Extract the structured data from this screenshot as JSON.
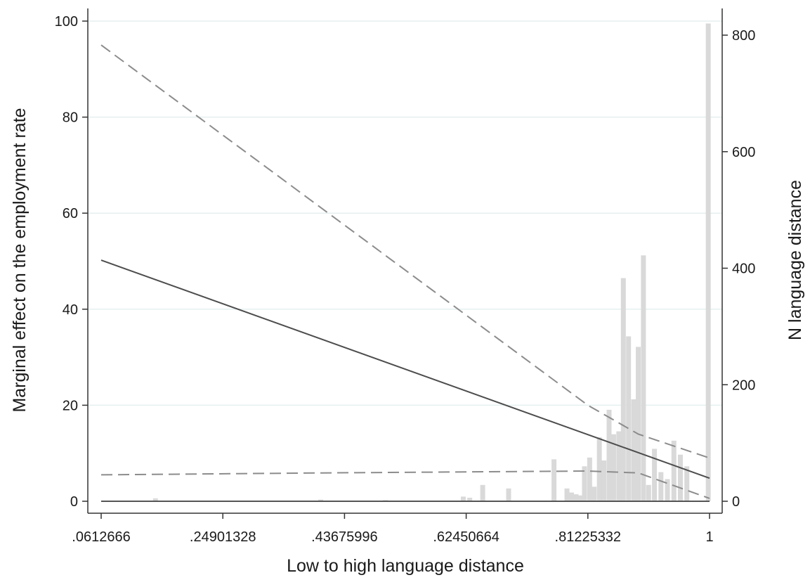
{
  "chart_data": {
    "type": "line",
    "xlabel": "Low to high language distance",
    "ylabel": "Marginal effect on the employment rate",
    "y2label": "N language distance",
    "xlim": [
      0.0612666,
      1
    ],
    "ylim": [
      0,
      100
    ],
    "y2lim": [
      0,
      820
    ],
    "x_ticks": [
      0.0612666,
      0.24901328,
      0.43675996,
      0.62450664,
      0.81225332,
      1
    ],
    "x_tick_labels": [
      ".0612666",
      ".24901328",
      ".43675996",
      ".62450664",
      ".81225332",
      "1"
    ],
    "y_ticks": [
      0,
      20,
      40,
      60,
      80,
      100
    ],
    "y_tick_labels": [
      "0",
      "20",
      "40",
      "60",
      "80",
      "100"
    ],
    "y2_ticks": [
      0,
      200,
      400,
      600,
      800
    ],
    "y2_tick_labels": [
      "0",
      "200",
      "400",
      "600",
      "800"
    ],
    "grid": true,
    "colors": {
      "effect_line": "#4d4d4d",
      "ci_line": "#8c8c8c",
      "bars": "#d9d9d9",
      "grid": "#e6efef",
      "axis": "#333333"
    },
    "series": [
      {
        "role": "effect",
        "style": "solid",
        "x": [
          0.0612666,
          1
        ],
        "y": [
          50.2,
          4.8
        ]
      },
      {
        "role": "upper_ci",
        "style": "dashed",
        "x": [
          0.0612666,
          0.81225332,
          0.89,
          1
        ],
        "y": [
          95,
          20,
          14,
          9
        ]
      },
      {
        "role": "lower_ci",
        "style": "dashed",
        "x": [
          0.0612666,
          0.4,
          0.81225332,
          0.89,
          1
        ],
        "y": [
          5.5,
          5.9,
          6.3,
          5.9,
          0.6
        ]
      }
    ],
    "histogram": {
      "axis": "right",
      "bars": [
        {
          "x": 0.12,
          "n": 1
        },
        {
          "x": 0.145,
          "n": 5
        },
        {
          "x": 0.4,
          "n": 3
        },
        {
          "x": 0.5,
          "n": 2
        },
        {
          "x": 0.62,
          "n": 8
        },
        {
          "x": 0.63,
          "n": 6
        },
        {
          "x": 0.65,
          "n": 28
        },
        {
          "x": 0.69,
          "n": 22
        },
        {
          "x": 0.76,
          "n": 72
        },
        {
          "x": 0.78,
          "n": 22
        },
        {
          "x": 0.787,
          "n": 15
        },
        {
          "x": 0.794,
          "n": 12
        },
        {
          "x": 0.8,
          "n": 10
        },
        {
          "x": 0.807,
          "n": 60
        },
        {
          "x": 0.815,
          "n": 75
        },
        {
          "x": 0.822,
          "n": 25
        },
        {
          "x": 0.83,
          "n": 110
        },
        {
          "x": 0.837,
          "n": 70
        },
        {
          "x": 0.845,
          "n": 157
        },
        {
          "x": 0.852,
          "n": 115
        },
        {
          "x": 0.86,
          "n": 120
        },
        {
          "x": 0.867,
          "n": 383
        },
        {
          "x": 0.875,
          "n": 283
        },
        {
          "x": 0.883,
          "n": 175
        },
        {
          "x": 0.89,
          "n": 265
        },
        {
          "x": 0.898,
          "n": 422
        },
        {
          "x": 0.906,
          "n": 28
        },
        {
          "x": 0.915,
          "n": 90
        },
        {
          "x": 0.925,
          "n": 50
        },
        {
          "x": 0.935,
          "n": 38
        },
        {
          "x": 0.945,
          "n": 104
        },
        {
          "x": 0.955,
          "n": 80
        },
        {
          "x": 0.965,
          "n": 60
        },
        {
          "x": 0.998,
          "n": 820
        }
      ]
    }
  }
}
